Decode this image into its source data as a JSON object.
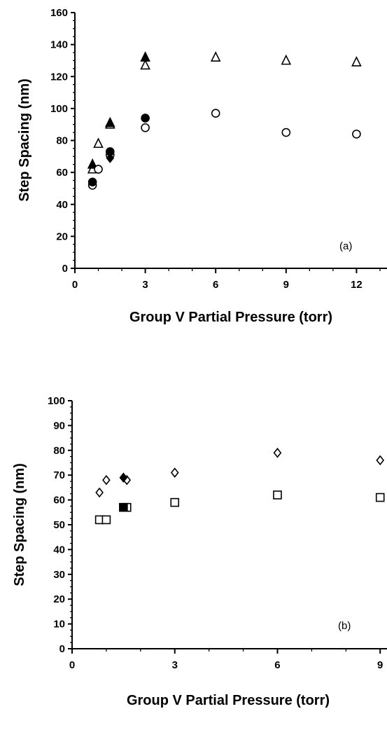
{
  "chart_data": [
    {
      "type": "scatter",
      "panel_label": "(a)",
      "xlabel": "Group V Partial Pressure (torr)",
      "ylabel": "Step Spacing (nm)",
      "xlim": [
        0,
        13.3
      ],
      "ylim": [
        0,
        160
      ],
      "x_ticks": [
        0,
        3,
        6,
        9,
        12
      ],
      "y_ticks": [
        0,
        20,
        40,
        60,
        80,
        100,
        120,
        140,
        160
      ],
      "grid": false,
      "series": [
        {
          "marker": "triangle",
          "filled": false,
          "color": "#000000",
          "x": [
            0.75,
            1.0,
            1.5,
            3.0,
            6.0,
            9.0,
            12.0
          ],
          "y": [
            62,
            78,
            90,
            127,
            132,
            130,
            129
          ]
        },
        {
          "marker": "triangle",
          "filled": true,
          "color": "#000000",
          "x": [
            0.75,
            1.5,
            3.0
          ],
          "y": [
            65,
            91,
            132
          ]
        },
        {
          "marker": "circle",
          "filled": false,
          "color": "#000000",
          "x": [
            0.75,
            1.0,
            1.5,
            3.0,
            6.0,
            9.0,
            12.0
          ],
          "y": [
            52,
            62,
            71,
            88,
            97,
            85,
            84
          ]
        },
        {
          "marker": "circle",
          "filled": true,
          "color": "#000000",
          "x": [
            0.75,
            1.5,
            3.0
          ],
          "y": [
            54,
            73,
            94
          ]
        },
        {
          "marker": "diamond",
          "filled": true,
          "color": "#000000",
          "x": [
            1.5
          ],
          "y": [
            69
          ]
        }
      ]
    },
    {
      "type": "scatter",
      "panel_label": "(b)",
      "xlabel": "Group V Partial Pressure (torr)",
      "ylabel": "Step Spacing (nm)",
      "xlim": [
        0,
        9.2
      ],
      "ylim": [
        0,
        100
      ],
      "x_ticks": [
        0,
        3,
        6,
        9
      ],
      "y_ticks": [
        0,
        10,
        20,
        30,
        40,
        50,
        60,
        70,
        80,
        90,
        100
      ],
      "grid": false,
      "series": [
        {
          "marker": "diamond",
          "filled": false,
          "color": "#000000",
          "x": [
            0.8,
            1.0,
            1.6,
            3.0,
            6.0,
            9.0
          ],
          "y": [
            63,
            68,
            68,
            71,
            79,
            76
          ]
        },
        {
          "marker": "diamond",
          "filled": true,
          "color": "#000000",
          "x": [
            1.5
          ],
          "y": [
            69
          ]
        },
        {
          "marker": "square",
          "filled": false,
          "color": "#000000",
          "x": [
            0.8,
            1.0,
            1.6,
            3.0,
            6.0,
            9.0
          ],
          "y": [
            52,
            52,
            57,
            59,
            62,
            61
          ]
        },
        {
          "marker": "square",
          "filled": true,
          "color": "#000000",
          "x": [
            1.5
          ],
          "y": [
            57
          ]
        }
      ]
    }
  ]
}
